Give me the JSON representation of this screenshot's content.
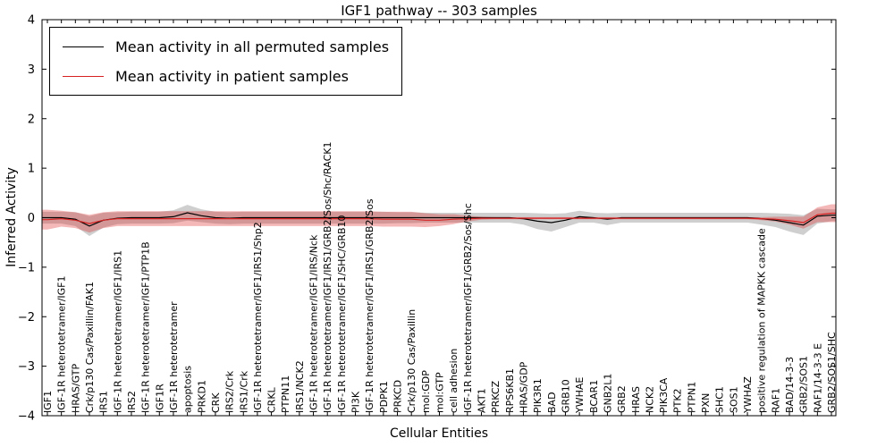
{
  "chart_data": {
    "type": "line",
    "title": "IGF1 pathway -- 303 samples",
    "xlabel": "Cellular Entities",
    "ylabel": "Inferred Activity",
    "ylim": [
      -4,
      4
    ],
    "yticks": [
      -4,
      -3,
      -2,
      -1,
      0,
      1,
      2,
      3,
      4
    ],
    "grid": false,
    "legend_position": "upper left",
    "categories": [
      "IGF1",
      "IGF-1R heterotetramer/IGF1",
      "HRAS/GTP",
      "Crk/p130 Cas/Paxillin/FAK1",
      "IRS1",
      "IGF-1R heterotetramer/IGF1/IRS1",
      "IRS2",
      "IGF-1R heterotetramer/IGF1/PTP1B",
      "IGF1R",
      "IGF-1R heterotetramer",
      "apoptosis",
      "PRKD1",
      "CRK",
      "IRS2/Crk",
      "IRS1/Crk",
      "IGF-1R heterotetramer/IGF1/IRS1/Shp2",
      "CRKL",
      "PTPN11",
      "IRS1/NCK2",
      "IGF-1R heterotetramer/IGF1/IRS/Nck",
      "IGF-1R heterotetramer/IGF1/IRS1/GRB2/Sos/Shc/RACK1",
      "IGF-1R heterotetramer/IGF1/SHC/GRB10",
      "PI3K",
      "IGF-1R heterotetramer/IGF1/IRS1/GRB2/Sos",
      "PDPK1",
      "PRKCD",
      "Crk/p130 Cas/Paxillin",
      "mol:GDP",
      "mol:GTP",
      "cell adhesion",
      "IGF-1R heterotetramer/IGF1/GRB2/Sos/Shc",
      "AKT1",
      "PRKCZ",
      "RPS6KB1",
      "HRAS/GDP",
      "PIK3R1",
      "BAD",
      "GRB10",
      "YWHAE",
      "BCAR1",
      "GNB2L1",
      "GRB2",
      "HRAS",
      "NCK2",
      "PIK3CA",
      "PTK2",
      "PTPN1",
      "PXN",
      "SHC1",
      "SOS1",
      "YWHAZ",
      "positive regulation of MAPKK cascade",
      "RAF1",
      "BAD/14-3-3",
      "GRB2/SOS1",
      "RAF1/14-3-3 E",
      "GRB2/SOS1/SHC"
    ],
    "series": [
      {
        "id": "permuted",
        "name": "Mean activity in all permuted samples",
        "color": "#000000",
        "band_color": "#888888",
        "band_opacity": 0.4,
        "values": [
          0.0,
          0.0,
          -0.03,
          -0.17,
          -0.05,
          -0.01,
          0.0,
          0.0,
          0.0,
          0.02,
          0.1,
          0.04,
          0.0,
          -0.01,
          0.0,
          0.0,
          0.0,
          0.0,
          0.0,
          0.0,
          0.0,
          0.0,
          0.0,
          0.0,
          0.0,
          0.0,
          0.0,
          0.0,
          0.0,
          0.0,
          0.0,
          0.0,
          0.0,
          0.0,
          -0.02,
          -0.07,
          -0.1,
          -0.05,
          0.02,
          0.0,
          -0.03,
          0.0,
          0.0,
          0.0,
          0.0,
          0.0,
          0.0,
          0.0,
          0.0,
          0.0,
          0.0,
          -0.02,
          -0.05,
          -0.1,
          -0.15,
          0.03,
          0.05
        ],
        "band": [
          0.12,
          0.12,
          0.14,
          0.2,
          0.15,
          0.12,
          0.12,
          0.12,
          0.12,
          0.13,
          0.16,
          0.13,
          0.12,
          0.12,
          0.12,
          0.12,
          0.12,
          0.12,
          0.12,
          0.12,
          0.12,
          0.12,
          0.12,
          0.12,
          0.12,
          0.11,
          0.11,
          0.1,
          0.1,
          0.1,
          0.1,
          0.1,
          0.1,
          0.1,
          0.12,
          0.16,
          0.18,
          0.14,
          0.12,
          0.1,
          0.12,
          0.1,
          0.1,
          0.1,
          0.1,
          0.1,
          0.1,
          0.1,
          0.1,
          0.1,
          0.1,
          0.12,
          0.14,
          0.18,
          0.2,
          0.15,
          0.12
        ]
      },
      {
        "id": "patient",
        "name": "Mean activity in patient samples",
        "color": "#d62222",
        "band_color": "#dd2222",
        "band_opacity": 0.32,
        "values": [
          -0.04,
          -0.02,
          -0.05,
          -0.12,
          -0.05,
          -0.02,
          -0.02,
          -0.02,
          -0.02,
          -0.02,
          -0.02,
          -0.02,
          -0.02,
          -0.02,
          -0.02,
          -0.02,
          -0.02,
          -0.02,
          -0.02,
          -0.02,
          -0.02,
          -0.02,
          -0.02,
          -0.02,
          -0.03,
          -0.03,
          -0.03,
          -0.05,
          -0.05,
          -0.03,
          -0.02,
          -0.01,
          -0.01,
          -0.01,
          -0.01,
          -0.01,
          -0.01,
          -0.01,
          -0.01,
          -0.01,
          -0.01,
          -0.01,
          -0.01,
          -0.01,
          -0.01,
          -0.01,
          -0.01,
          -0.01,
          -0.01,
          -0.01,
          -0.01,
          -0.02,
          -0.03,
          -0.06,
          -0.1,
          0.06,
          0.09
        ],
        "band": [
          0.2,
          0.16,
          0.16,
          0.18,
          0.16,
          0.15,
          0.15,
          0.15,
          0.15,
          0.15,
          0.15,
          0.15,
          0.15,
          0.15,
          0.15,
          0.15,
          0.15,
          0.15,
          0.15,
          0.15,
          0.15,
          0.15,
          0.15,
          0.15,
          0.15,
          0.15,
          0.15,
          0.14,
          0.12,
          0.1,
          0.06,
          0.03,
          0.02,
          0.02,
          0.02,
          0.02,
          0.02,
          0.02,
          0.02,
          0.02,
          0.02,
          0.02,
          0.02,
          0.02,
          0.02,
          0.02,
          0.02,
          0.02,
          0.02,
          0.02,
          0.02,
          0.03,
          0.05,
          0.08,
          0.12,
          0.15,
          0.18
        ]
      }
    ]
  }
}
